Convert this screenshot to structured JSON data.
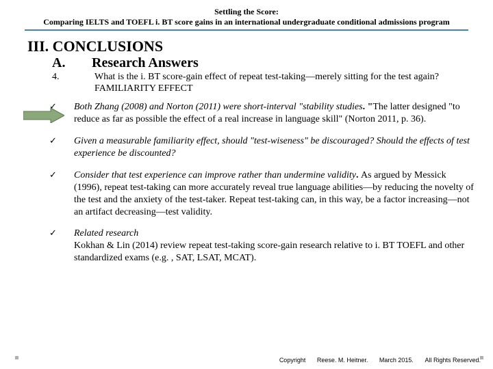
{
  "header": {
    "line1": "Settling the Score:",
    "line2": "Comparing IELTS and TOEFL i. BT score gains in an international undergraduate conditional admissions program"
  },
  "section": {
    "roman": "III. CONCLUSIONS",
    "sub_a_label": "A.",
    "sub_a_text": "Research Answers",
    "q_num": "4.",
    "q_text": "What is the i. BT score-gain effect of repeat test-taking—merely sitting for the test again?",
    "familiarity": "FAMILIARITY EFFECT"
  },
  "arrow": {
    "fill": "#8aa87a",
    "stroke": "#5c7a4f",
    "width": 60,
    "height": 22
  },
  "bullets": [
    {
      "lead_italic": "Both Zhang (2008) and Norton (2011) were short-interval \"stability studies",
      "lead_tail": ". \"",
      "body": "The latter designed \"to reduce as far as possible the effect of a real increase in language skill\" (Norton 2011, p. 36)."
    },
    {
      "lead_italic": "Given a measurable familiarity effect, should \"test-wiseness\" be discouraged? Should the effects of test experience be discounted?",
      "lead_tail": "",
      "body": ""
    },
    {
      "lead_italic": "Consider that test experience can improve rather than undermine validity",
      "lead_tail": ". ",
      "body": "As argued by Messick (1996), repeat test-taking can more accurately reveal true language abilities—by reducing the novelty of the test and the anxiety of the test-taker. Repeat test-taking can, in this way, be a factor increasing—not an artifact decreasing—test validity."
    },
    {
      "lead_italic": "Related research",
      "lead_tail": "",
      "body": "Kokhan & Lin (2014) review repeat test-taking score-gain research relative to i. BT TOEFL and other standardized exams (e.g. , SAT, LSAT, MCAT)."
    }
  ],
  "check_glyph": "✓",
  "footer": {
    "copyright": "Copyright",
    "author": "Reese. M. Heitner.",
    "date": "March 2015.",
    "rights": "All Rights Reserved."
  },
  "colors": {
    "rule": "#4a7fb0",
    "text": "#000000",
    "bg": "#ffffff"
  }
}
